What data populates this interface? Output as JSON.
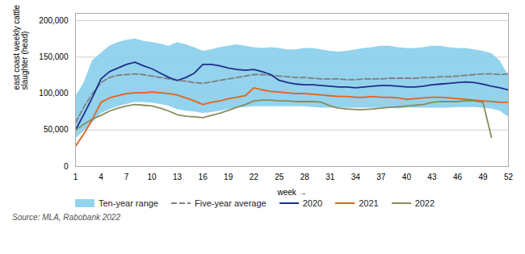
{
  "chart_data": {
    "type": "line",
    "xlabel": "week",
    "ylabel": "east coast weekly cattle\nslaughter (head)",
    "source": "Source: MLA, Rabobank 2022",
    "xlim": [
      1,
      52
    ],
    "ylim": [
      0,
      210000
    ],
    "xticks": [
      1,
      4,
      7,
      10,
      13,
      16,
      19,
      22,
      25,
      28,
      31,
      34,
      37,
      40,
      43,
      46,
      49,
      52
    ],
    "yticks": [
      0,
      {
        "value": 50000,
        "label": "50,000"
      },
      {
        "value": 100000,
        "label": "100,000"
      },
      {
        "value": 150000,
        "label": "150,000"
      },
      {
        "value": 200000,
        "label": "200,000"
      }
    ],
    "grid": true,
    "legend": "bottom",
    "x": [
      1,
      2,
      3,
      4,
      5,
      6,
      7,
      8,
      9,
      10,
      11,
      12,
      13,
      14,
      15,
      16,
      17,
      18,
      19,
      20,
      21,
      22,
      23,
      24,
      25,
      26,
      27,
      28,
      29,
      30,
      31,
      32,
      33,
      34,
      35,
      36,
      37,
      38,
      39,
      40,
      41,
      42,
      43,
      44,
      45,
      46,
      47,
      48,
      49,
      50,
      51,
      52
    ],
    "series": [
      {
        "name": "Ten-year range",
        "type": "area",
        "color": "#87CEEB",
        "lower": [
          38000,
          48000,
          60000,
          72000,
          78000,
          82000,
          85000,
          88000,
          88000,
          87000,
          85000,
          83000,
          78000,
          76000,
          75000,
          73000,
          74000,
          76000,
          78000,
          80000,
          81000,
          82000,
          82000,
          82000,
          82000,
          82000,
          82000,
          82000,
          81000,
          80000,
          80000,
          80000,
          80000,
          80000,
          80000,
          80000,
          80000,
          80000,
          79000,
          80000,
          80000,
          80000,
          80000,
          80000,
          80000,
          81000,
          81000,
          81000,
          80000,
          79000,
          76000,
          68000
        ],
        "upper": [
          95000,
          115000,
          145000,
          155000,
          165000,
          170000,
          173000,
          175000,
          172000,
          170000,
          168000,
          165000,
          170000,
          167000,
          163000,
          158000,
          160000,
          163000,
          165000,
          167000,
          165000,
          163000,
          162000,
          163000,
          162000,
          160000,
          160000,
          162000,
          162000,
          160000,
          158000,
          157000,
          158000,
          160000,
          162000,
          163000,
          165000,
          165000,
          163000,
          162000,
          162000,
          163000,
          165000,
          165000,
          163000,
          162000,
          162000,
          160000,
          158000,
          155000,
          145000,
          125000
        ]
      },
      {
        "name": "Five-year average",
        "type": "line",
        "line_style": "dashed",
        "color": "#7f7f7f",
        "values": [
          60000,
          82000,
          100000,
          115000,
          122000,
          125000,
          126000,
          127000,
          126000,
          124000,
          122000,
          120000,
          118000,
          117000,
          115000,
          114000,
          116000,
          118000,
          120000,
          122000,
          124000,
          126000,
          126000,
          125000,
          124000,
          123000,
          122000,
          122000,
          121000,
          120000,
          120000,
          120000,
          119000,
          119000,
          120000,
          120000,
          120000,
          121000,
          121000,
          121000,
          121000,
          122000,
          122000,
          123000,
          123000,
          124000,
          125000,
          126000,
          127000,
          127000,
          126000,
          127000
        ]
      },
      {
        "name": "2020",
        "type": "line",
        "line_style": "solid",
        "color": "#1f2e8c",
        "values": [
          50000,
          72000,
          95000,
          120000,
          130000,
          135000,
          140000,
          143000,
          138000,
          134000,
          128000,
          122000,
          118000,
          122000,
          128000,
          140000,
          140000,
          138000,
          135000,
          133000,
          132000,
          133000,
          130000,
          126000,
          118000,
          115000,
          113000,
          112000,
          112000,
          111000,
          110000,
          109000,
          109000,
          108000,
          109000,
          110000,
          111000,
          111000,
          110000,
          109000,
          109000,
          110000,
          112000,
          113000,
          114000,
          115000,
          116000,
          115000,
          113000,
          110000,
          108000,
          105000
        ]
      },
      {
        "name": "2021",
        "type": "line",
        "line_style": "solid",
        "color": "#e8611a",
        "values": [
          28000,
          45000,
          65000,
          88000,
          94000,
          97000,
          100000,
          101000,
          101000,
          102000,
          101000,
          100000,
          98000,
          94000,
          90000,
          85000,
          88000,
          90000,
          93000,
          95000,
          97000,
          108000,
          105000,
          103000,
          102000,
          101000,
          100000,
          100000,
          99000,
          98000,
          97000,
          96000,
          96000,
          95000,
          95000,
          96000,
          95000,
          95000,
          94000,
          92000,
          93000,
          94000,
          95000,
          95000,
          94000,
          93000,
          92000,
          91000,
          90000,
          89000,
          88000,
          88000
        ]
      },
      {
        "name": "2022",
        "type": "line",
        "line_style": "solid",
        "color": "#8b8b5a",
        "values": [
          50000,
          58000,
          65000,
          70000,
          76000,
          80000,
          83000,
          85000,
          84000,
          83000,
          80000,
          76000,
          71000,
          69000,
          68000,
          67000,
          70000,
          73000,
          77000,
          81000,
          85000,
          90000,
          91000,
          91000,
          90000,
          90000,
          89000,
          89000,
          89000,
          88000,
          83000,
          80000,
          79000,
          78000,
          78000,
          79000,
          80000,
          81000,
          82000,
          83000,
          84000,
          85000,
          88000,
          89000,
          89000,
          89000,
          90000,
          90000,
          88000,
          40000,
          null,
          null
        ]
      }
    ]
  }
}
